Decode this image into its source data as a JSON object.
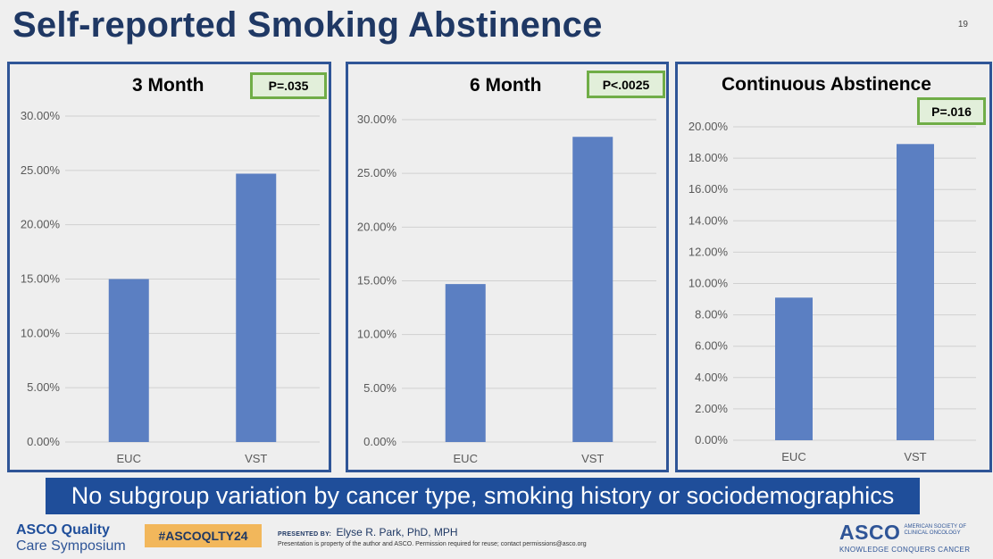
{
  "slide": {
    "title": "Self-reported Smoking Abstinence",
    "number": "19"
  },
  "banner": "No subgroup variation by cancer type, smoking history or sociodemographics",
  "footer": {
    "logo_left_line1": "ASCO Quality",
    "logo_left_line2": "Care Symposium",
    "hashtag": "#ASCOQLTY24",
    "presented_label": "PRESENTED BY:",
    "presenter": "Elyse R. Park, PhD, MPH",
    "notice": "Presentation is property of the author and ASCO. Permission required for reuse; contact permissions@asco.org",
    "asco_logo": "ASCO",
    "asco_society_line1": "AMERICAN SOCIETY OF",
    "asco_society_line2": "CLINICAL ONCOLOGY",
    "asco_tagline": "KNOWLEDGE CONQUERS CANCER"
  },
  "colors": {
    "bar": "#5b7fc2",
    "panel_border": "#2f5597",
    "pbox_border": "#70ad47",
    "pbox_fill": "#e2efda",
    "title": "#1f3864",
    "banner": "#1f4e9a"
  },
  "chart_data": [
    {
      "type": "bar",
      "title": "3 Month",
      "annotation": "P=.035",
      "categories": [
        "EUC",
        "VST"
      ],
      "values": [
        0.15,
        0.247
      ],
      "ylim": [
        0,
        0.3
      ],
      "yticks": [
        0,
        0.05,
        0.1,
        0.15,
        0.2,
        0.25,
        0.3
      ],
      "ytick_labels": [
        "0.00%",
        "5.00%",
        "10.00%",
        "15.00%",
        "20.00%",
        "25.00%",
        "30.00%"
      ],
      "grid": true,
      "xlabel": "",
      "ylabel": ""
    },
    {
      "type": "bar",
      "title": "6 Month",
      "annotation": "P<.0025",
      "categories": [
        "EUC",
        "VST"
      ],
      "values": [
        0.147,
        0.284
      ],
      "ylim": [
        0,
        0.3
      ],
      "yticks": [
        0,
        0.05,
        0.1,
        0.15,
        0.2,
        0.25,
        0.3
      ],
      "ytick_labels": [
        "0.00%",
        "5.00%",
        "10.00%",
        "15.00%",
        "20.00%",
        "25.00%",
        "30.00%"
      ],
      "grid": true,
      "xlabel": "",
      "ylabel": ""
    },
    {
      "type": "bar",
      "title": "Continuous Abstinence",
      "annotation": "P=.016",
      "categories": [
        "EUC",
        "VST"
      ],
      "values": [
        0.091,
        0.189
      ],
      "ylim": [
        0,
        0.2
      ],
      "yticks": [
        0,
        0.02,
        0.04,
        0.06,
        0.08,
        0.1,
        0.12,
        0.14,
        0.16,
        0.18,
        0.2
      ],
      "ytick_labels": [
        "0.00%",
        "2.00%",
        "4.00%",
        "6.00%",
        "8.00%",
        "10.00%",
        "12.00%",
        "14.00%",
        "16.00%",
        "18.00%",
        "20.00%"
      ],
      "grid": true,
      "xlabel": "",
      "ylabel": ""
    }
  ]
}
